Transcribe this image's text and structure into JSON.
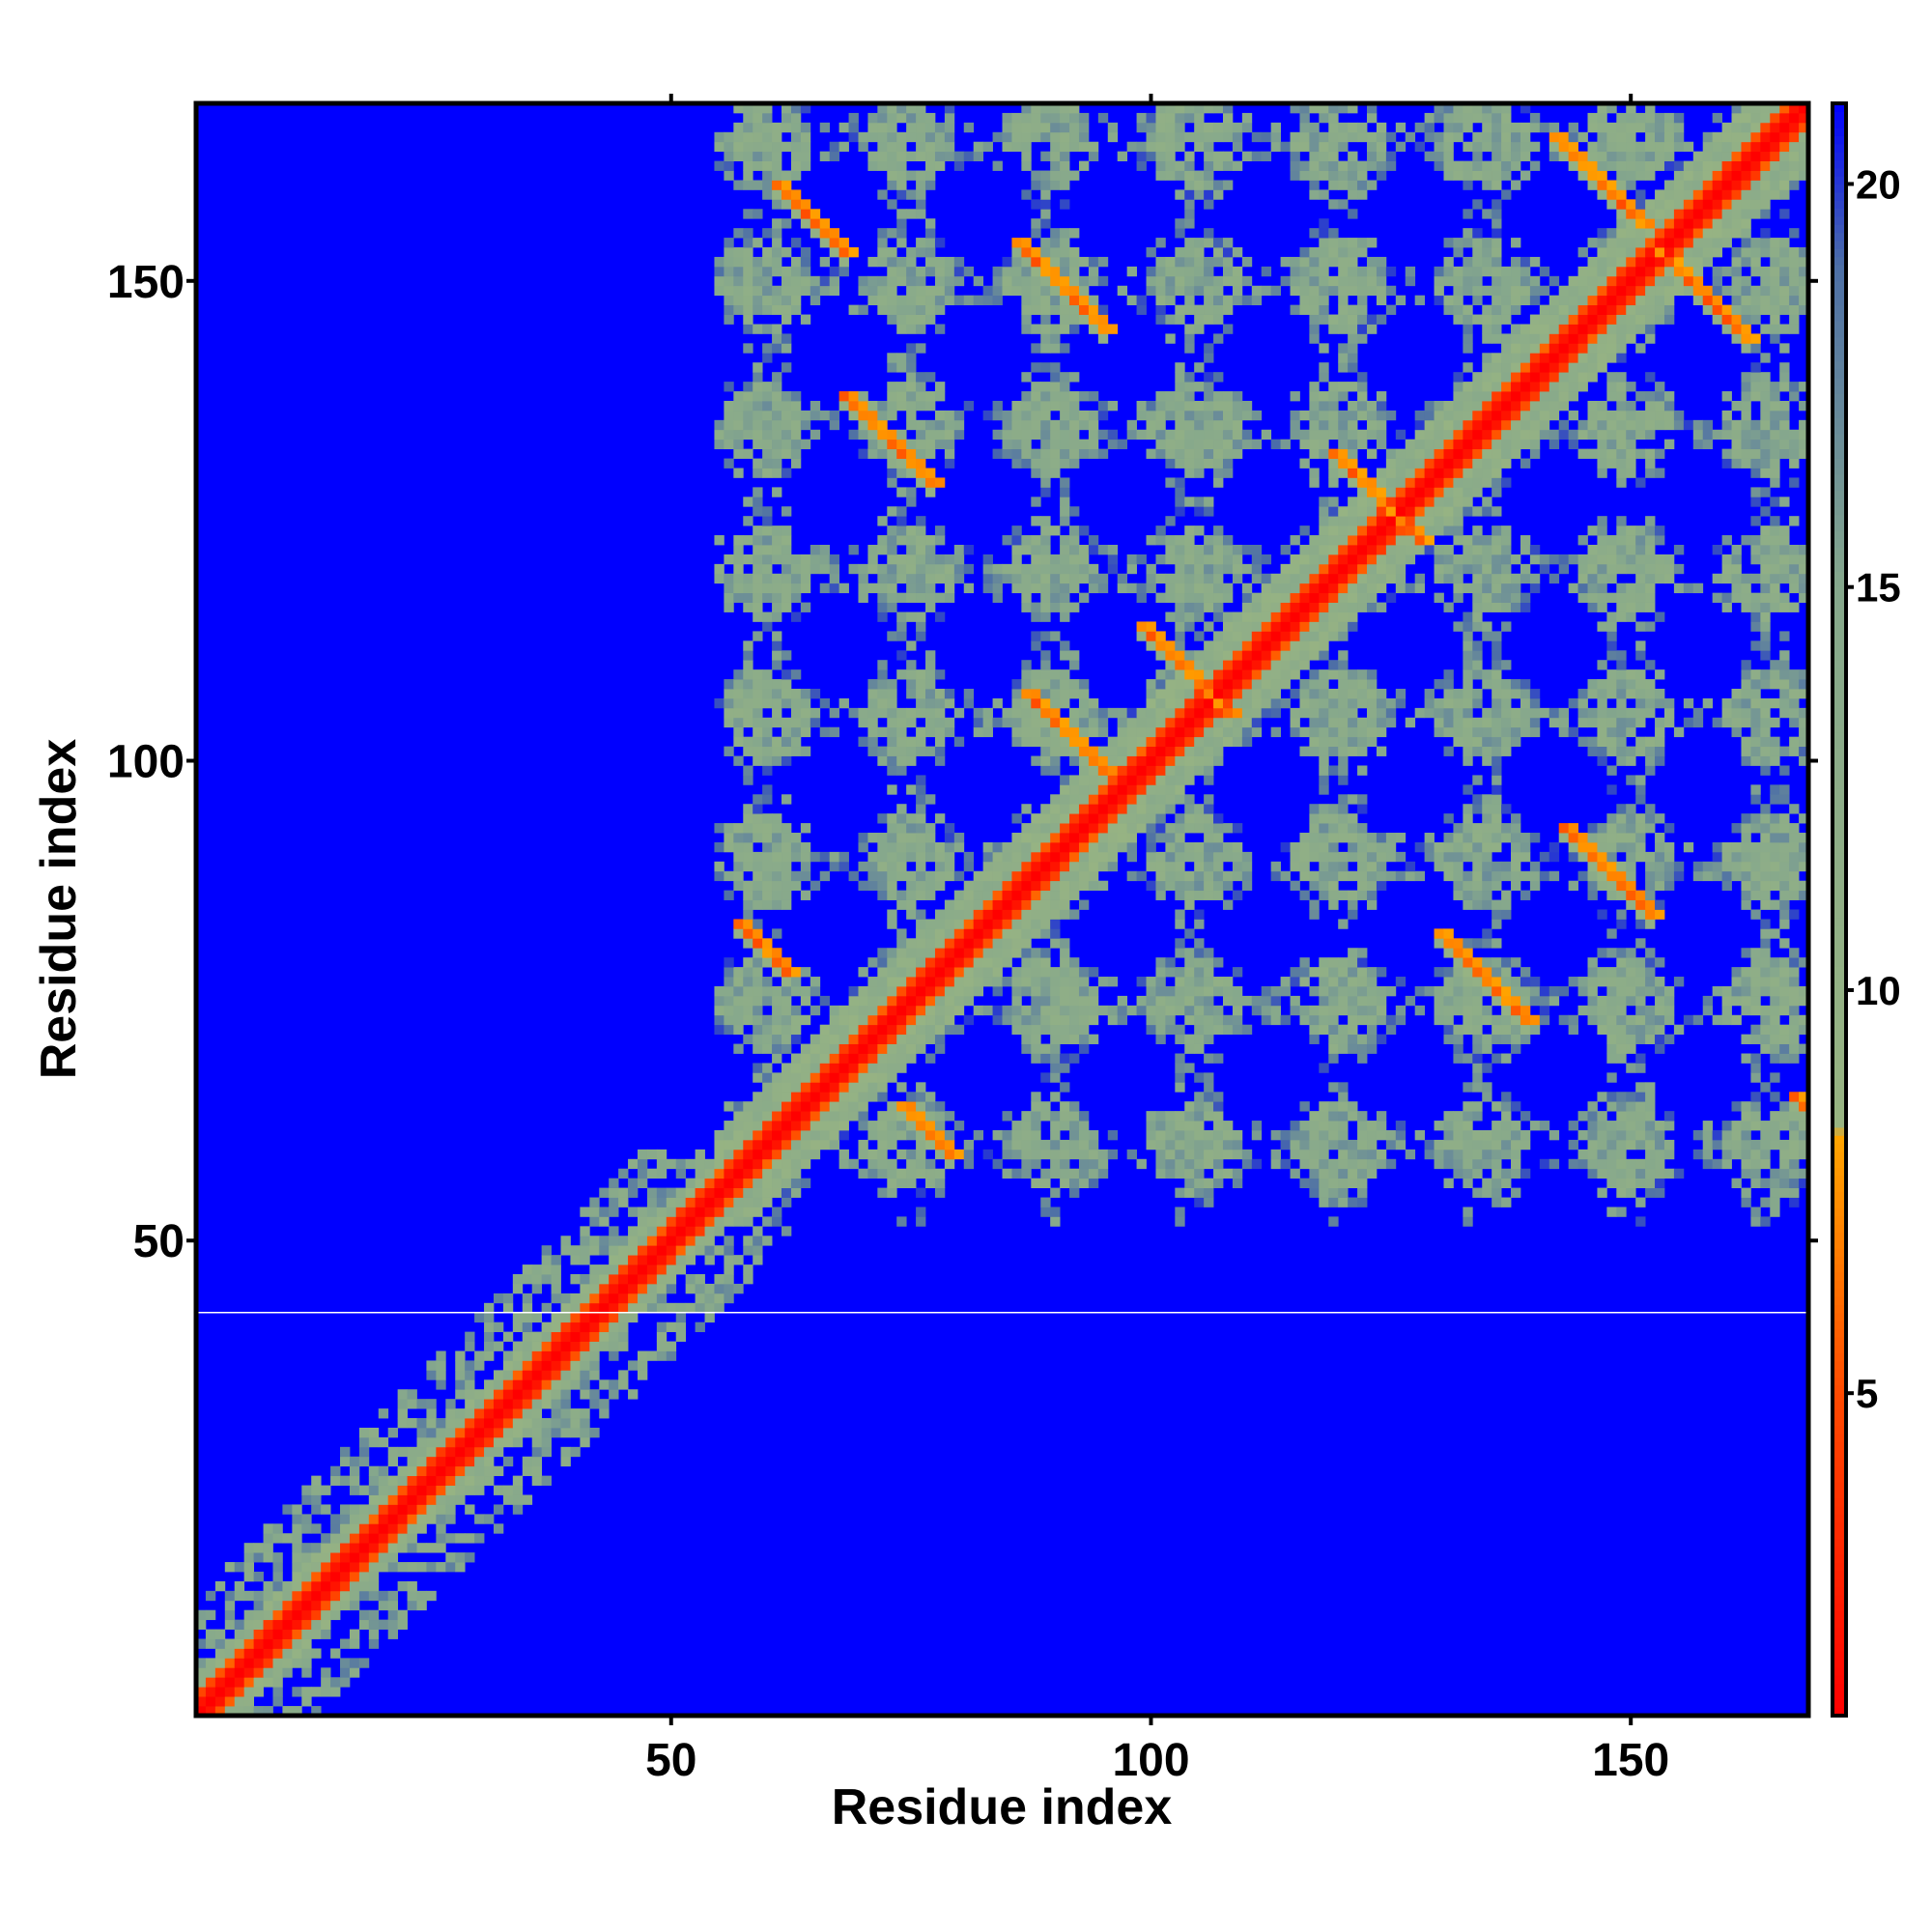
{
  "chart_data": {
    "type": "heatmap",
    "title": "",
    "xlabel": "Residue index",
    "ylabel": "Residue index",
    "xlim": [
      1,
      168
    ],
    "ylim": [
      1,
      168
    ],
    "x_ticks": [
      50,
      100,
      150
    ],
    "y_ticks": [
      50,
      100,
      150
    ],
    "colorbar": {
      "range": [
        1,
        21
      ],
      "ticks": [
        5,
        10,
        15,
        20
      ],
      "stops": [
        {
          "value": 1,
          "color": "#ff0000"
        },
        {
          "value": 5,
          "color": "#ff4a00"
        },
        {
          "value": 8.2,
          "color": "#ffa500"
        },
        {
          "value": 8.3,
          "color": "#98b482"
        },
        {
          "value": 15,
          "color": "#86a88c"
        },
        {
          "value": 19,
          "color": "#4d6fa6"
        },
        {
          "value": 21,
          "color": "#0000ff"
        }
      ]
    },
    "matrix_summary": {
      "description_values": "pairwise distance, low along diagonal",
      "diagonal_value": 1,
      "background_value": 21,
      "lower_block_max_offset": 12,
      "upper_region_start_residue": 55,
      "upper_region_end_row": 52,
      "contact_bands": [
        {
          "row_start": 160,
          "col_start": 61,
          "length": 8,
          "direction": "anti"
        },
        {
          "row_start": 154,
          "col_start": 86,
          "length": 10,
          "direction": "anti"
        },
        {
          "row_start": 138,
          "col_start": 68,
          "length": 10,
          "direction": "anti"
        },
        {
          "row_start": 132,
          "col_start": 119,
          "length": 10,
          "direction": "anti"
        },
        {
          "row_start": 107,
          "col_start": 87,
          "length": 10,
          "direction": "anti"
        },
        {
          "row_start": 114,
          "col_start": 99,
          "length": 10,
          "direction": "anti"
        },
        {
          "row_start": 93,
          "col_start": 143,
          "length": 10,
          "direction": "anti"
        },
        {
          "row_start": 82,
          "col_start": 130,
          "length": 10,
          "direction": "anti"
        },
        {
          "row_start": 83,
          "col_start": 57,
          "length": 6,
          "direction": "anti"
        },
        {
          "row_start": 64,
          "col_start": 74,
          "length": 6,
          "direction": "anti"
        },
        {
          "row_start": 165,
          "col_start": 142,
          "length": 10,
          "direction": "anti"
        },
        {
          "row_start": 153,
          "col_start": 153,
          "length": 10,
          "direction": "anti"
        },
        {
          "row_start": 65,
          "col_start": 167,
          "length": 8,
          "direction": "anti"
        }
      ],
      "blank_row": 42
    }
  }
}
